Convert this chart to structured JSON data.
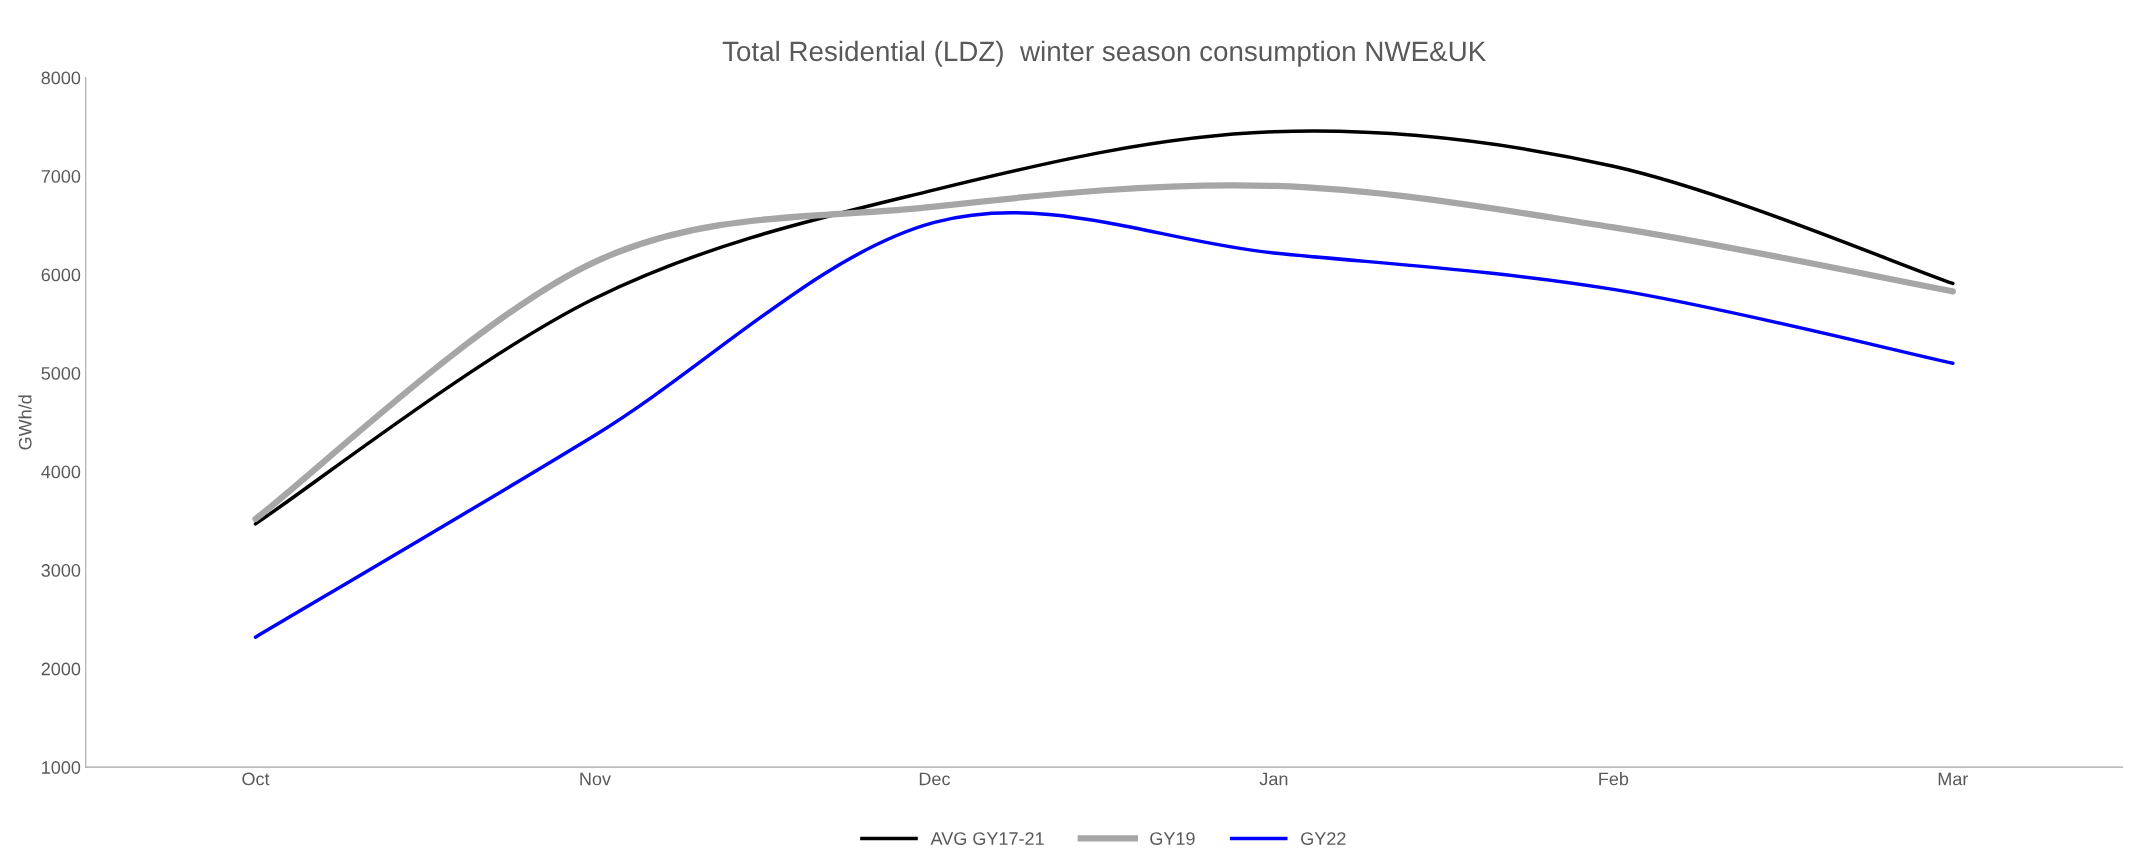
{
  "chart_data": {
    "type": "line",
    "title": "Total Residential (LDZ)  winter season consumption NWE&UK",
    "ylabel": "GWh/d",
    "categories": [
      "Oct",
      "Nov",
      "Dec",
      "Jan",
      "Feb",
      "Mar"
    ],
    "series": [
      {
        "name": "AVG GY17-21",
        "color": "#000000",
        "values": [
          3470,
          5760,
          6860,
          7450,
          7100,
          5910
        ]
      },
      {
        "name": "GY19",
        "color": "#a6a6a6",
        "values": [
          3520,
          6130,
          6690,
          6900,
          6480,
          5830
        ]
      },
      {
        "name": "GY22",
        "color": "#0000ff",
        "values": [
          2320,
          4370,
          6530,
          6220,
          5850,
          5100
        ]
      }
    ],
    "ylim": [
      1000,
      8000
    ],
    "yticks": [
      1000,
      2000,
      3000,
      4000,
      5000,
      6000,
      7000,
      8000
    ],
    "grid": false,
    "legend": "bottom",
    "marker": "none",
    "line_style": "solid"
  }
}
